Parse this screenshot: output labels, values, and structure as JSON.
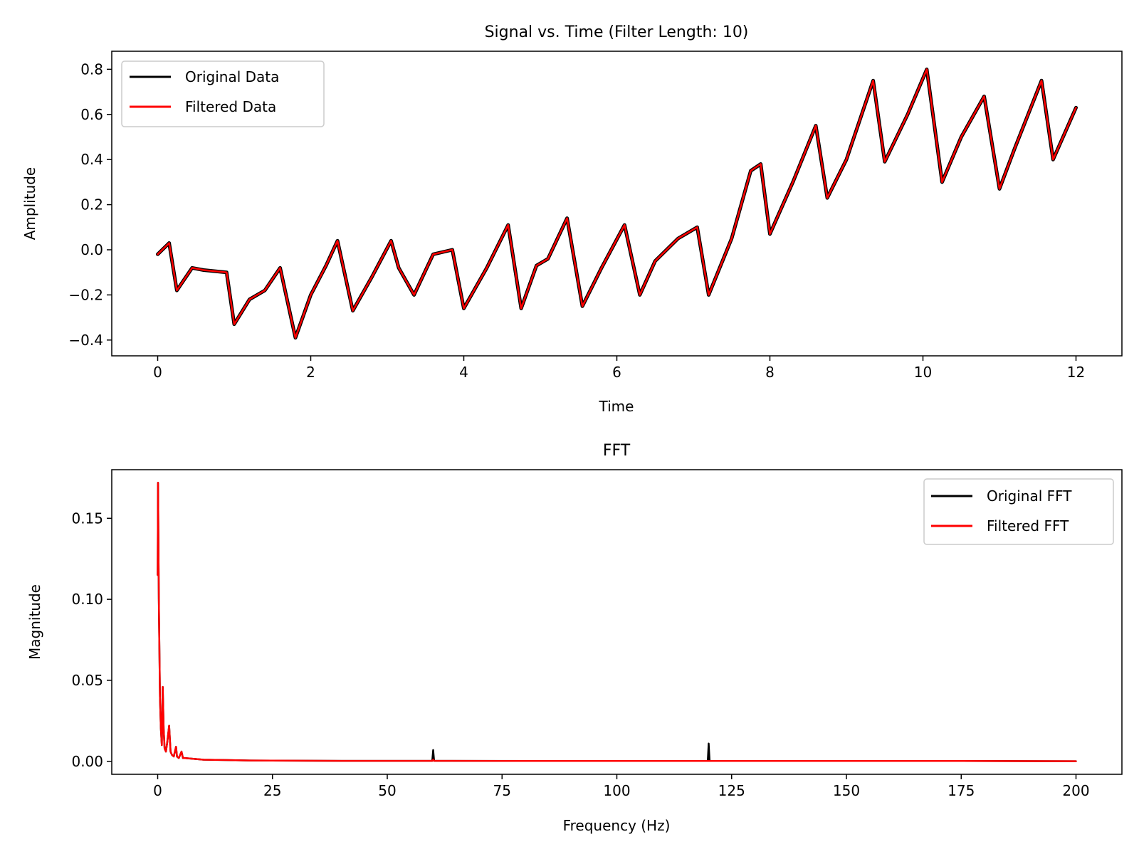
{
  "colors": {
    "original": "#000000",
    "filtered": "#ff0000",
    "background": "#ffffff",
    "legend_border": "#cccccc"
  },
  "chart_data": [
    {
      "type": "line",
      "title": "Signal vs. Time (Filter Length: 10)",
      "xlabel": "Time",
      "ylabel": "Amplitude",
      "xlim": [
        -0.6,
        12.6
      ],
      "ylim": [
        -0.47,
        0.88
      ],
      "xticks": [
        0,
        2,
        4,
        6,
        8,
        10,
        12
      ],
      "xtick_labels": [
        "0",
        "2",
        "4",
        "6",
        "8",
        "10",
        "12"
      ],
      "yticks": [
        -0.4,
        -0.2,
        0.0,
        0.2,
        0.4,
        0.6,
        0.8
      ],
      "ytick_labels": [
        "−0.4",
        "−0.2",
        "0.0",
        "0.2",
        "0.4",
        "0.6",
        "0.8"
      ],
      "grid": false,
      "legend_position": "upper-left",
      "series": [
        {
          "name": "Original Data",
          "color": "#000000",
          "x": [
            0,
            0.15,
            0.25,
            0.45,
            0.6,
            0.9,
            1.0,
            1.2,
            1.4,
            1.6,
            1.8,
            2.0,
            2.2,
            2.35,
            2.55,
            2.8,
            3.05,
            3.15,
            3.35,
            3.6,
            3.85,
            4.0,
            4.3,
            4.58,
            4.75,
            4.95,
            5.1,
            5.35,
            5.55,
            5.8,
            6.1,
            6.3,
            6.5,
            6.8,
            7.05,
            7.2,
            7.5,
            7.75,
            7.88,
            8.0,
            8.3,
            8.6,
            8.75,
            9.0,
            9.35,
            9.5,
            9.8,
            10.05,
            10.25,
            10.5,
            10.8,
            11.0,
            11.2,
            11.55,
            11.7,
            12.0
          ],
          "y": [
            -0.02,
            0.03,
            -0.18,
            -0.08,
            -0.09,
            -0.1,
            -0.33,
            -0.22,
            -0.18,
            -0.08,
            -0.39,
            -0.2,
            -0.07,
            0.04,
            -0.27,
            -0.12,
            0.04,
            -0.08,
            -0.2,
            -0.02,
            0.0,
            -0.26,
            -0.08,
            0.11,
            -0.26,
            -0.07,
            -0.04,
            0.14,
            -0.25,
            -0.08,
            0.11,
            -0.2,
            -0.05,
            0.05,
            0.1,
            -0.2,
            0.05,
            0.35,
            0.38,
            0.07,
            0.3,
            0.55,
            0.23,
            0.4,
            0.75,
            0.39,
            0.6,
            0.8,
            0.3,
            0.5,
            0.68,
            0.27,
            0.45,
            0.75,
            0.4,
            0.63
          ]
        },
        {
          "name": "Filtered Data",
          "color": "#ff0000",
          "x": [
            0,
            0.15,
            0.25,
            0.45,
            0.6,
            0.9,
            1.0,
            1.2,
            1.4,
            1.6,
            1.8,
            2.0,
            2.2,
            2.35,
            2.55,
            2.8,
            3.05,
            3.15,
            3.35,
            3.6,
            3.85,
            4.0,
            4.3,
            4.58,
            4.75,
            4.95,
            5.1,
            5.35,
            5.55,
            5.8,
            6.1,
            6.3,
            6.5,
            6.8,
            7.05,
            7.2,
            7.5,
            7.75,
            7.88,
            8.0,
            8.3,
            8.6,
            8.75,
            9.0,
            9.35,
            9.5,
            9.8,
            10.05,
            10.25,
            10.5,
            10.8,
            11.0,
            11.2,
            11.55,
            11.7,
            12.0
          ],
          "y": [
            -0.02,
            0.03,
            -0.18,
            -0.08,
            -0.09,
            -0.1,
            -0.33,
            -0.22,
            -0.18,
            -0.08,
            -0.39,
            -0.2,
            -0.07,
            0.04,
            -0.27,
            -0.12,
            0.04,
            -0.08,
            -0.2,
            -0.02,
            0.0,
            -0.26,
            -0.08,
            0.11,
            -0.26,
            -0.07,
            -0.04,
            0.14,
            -0.25,
            -0.08,
            0.11,
            -0.2,
            -0.05,
            0.05,
            0.1,
            -0.2,
            0.05,
            0.35,
            0.38,
            0.07,
            0.3,
            0.55,
            0.23,
            0.4,
            0.75,
            0.39,
            0.6,
            0.8,
            0.3,
            0.5,
            0.68,
            0.27,
            0.45,
            0.75,
            0.4,
            0.63
          ]
        }
      ]
    },
    {
      "type": "line",
      "title": "FFT",
      "xlabel": "Frequency (Hz)",
      "ylabel": "Magnitude",
      "xlim": [
        -10,
        210
      ],
      "ylim": [
        -0.008,
        0.18
      ],
      "xticks": [
        0,
        25,
        50,
        75,
        100,
        125,
        150,
        175,
        200
      ],
      "xtick_labels": [
        "0",
        "25",
        "50",
        "75",
        "100",
        "125",
        "150",
        "175",
        "200"
      ],
      "yticks": [
        0.0,
        0.05,
        0.1,
        0.15
      ],
      "ytick_labels": [
        "0.00",
        "0.05",
        "0.10",
        "0.15"
      ],
      "grid": false,
      "legend_position": "upper-right",
      "series": [
        {
          "name": "Original FFT",
          "color": "#000000",
          "x": [
            0,
            0.08,
            0.25,
            0.5,
            0.7,
            0.9,
            1.1,
            1.3,
            1.5,
            1.8,
            2.1,
            2.5,
            2.8,
            3.1,
            3.5,
            4.0,
            4.2,
            4.6,
            5.2,
            5.5,
            6,
            8,
            10,
            15,
            20,
            30,
            40,
            59.8,
            60,
            60.2,
            80,
            100,
            119.8,
            120,
            120.2,
            150,
            175,
            200
          ],
          "y": [
            0.115,
            0.172,
            0.1,
            0.04,
            0.02,
            0.01,
            0.046,
            0.02,
            0.008,
            0.006,
            0.012,
            0.022,
            0.006,
            0.004,
            0.003,
            0.009,
            0.003,
            0.002,
            0.006,
            0.002,
            0.002,
            0.0015,
            0.001,
            0.0008,
            0.0005,
            0.0004,
            0.0003,
            0.0003,
            0.007,
            0.0003,
            0.0002,
            0.0002,
            0.0002,
            0.011,
            0.0002,
            0.0002,
            0.0002,
            0.0001
          ]
        },
        {
          "name": "Filtered FFT",
          "color": "#ff0000",
          "x": [
            0,
            0.08,
            0.25,
            0.5,
            0.7,
            0.9,
            1.1,
            1.3,
            1.5,
            1.8,
            2.1,
            2.5,
            2.8,
            3.1,
            3.5,
            4.0,
            4.2,
            4.6,
            5.2,
            5.5,
            6,
            8,
            10,
            15,
            20,
            30,
            40,
            59.8,
            60,
            60.2,
            80,
            100,
            119.8,
            120,
            120.2,
            150,
            175,
            200
          ],
          "y": [
            0.115,
            0.172,
            0.1,
            0.04,
            0.02,
            0.01,
            0.046,
            0.02,
            0.008,
            0.006,
            0.012,
            0.022,
            0.006,
            0.004,
            0.003,
            0.009,
            0.003,
            0.002,
            0.006,
            0.002,
            0.002,
            0.0015,
            0.001,
            0.0008,
            0.0005,
            0.0004,
            0.0003,
            0.0003,
            0.001,
            0.0003,
            0.0002,
            0.0002,
            0.0002,
            0.0003,
            0.0002,
            0.0002,
            0.0002,
            0.0001
          ]
        }
      ]
    }
  ]
}
